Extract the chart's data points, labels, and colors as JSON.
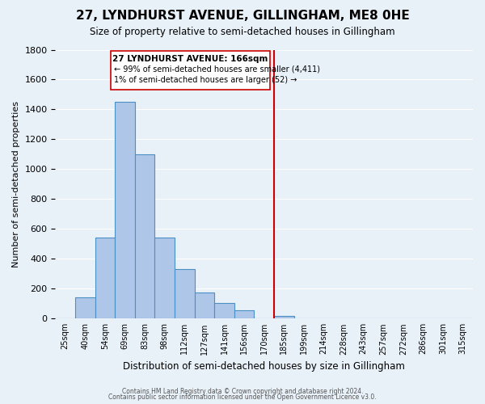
{
  "title": "27, LYNDHURST AVENUE, GILLINGHAM, ME8 0HE",
  "subtitle": "Size of property relative to semi-detached houses in Gillingham",
  "xlabel": "Distribution of semi-detached houses by size in Gillingham",
  "ylabel": "Number of semi-detached properties",
  "bin_labels": [
    "25sqm",
    "40sqm",
    "54sqm",
    "69sqm",
    "83sqm",
    "98sqm",
    "112sqm",
    "127sqm",
    "141sqm",
    "156sqm",
    "170sqm",
    "185sqm",
    "199sqm",
    "214sqm",
    "228sqm",
    "243sqm",
    "257sqm",
    "272sqm",
    "286sqm",
    "301sqm",
    "315sqm"
  ],
  "bar_values": [
    0,
    140,
    540,
    1450,
    1100,
    545,
    330,
    175,
    105,
    55,
    0,
    18,
    0,
    0,
    0,
    0,
    0,
    0,
    0,
    0,
    0
  ],
  "bar_color": "#aec6e8",
  "bar_edge_color": "#4a90c4",
  "vline_x": 10.5,
  "vline_color": "#cc0000",
  "annotation_title": "27 LYNDHURST AVENUE: 166sqm",
  "annotation_line1": "← 99% of semi-detached houses are smaller (4,411)",
  "annotation_line2": "1% of semi-detached houses are larger (52) →",
  "ylim": [
    0,
    1800
  ],
  "yticks": [
    0,
    200,
    400,
    600,
    800,
    1000,
    1200,
    1400,
    1600,
    1800
  ],
  "footer1": "Contains HM Land Registry data © Crown copyright and database right 2024.",
  "footer2": "Contains public sector information licensed under the Open Government Licence v3.0.",
  "bg_color": "#e8f0f8",
  "plot_bg_color": "#e8f0f8"
}
